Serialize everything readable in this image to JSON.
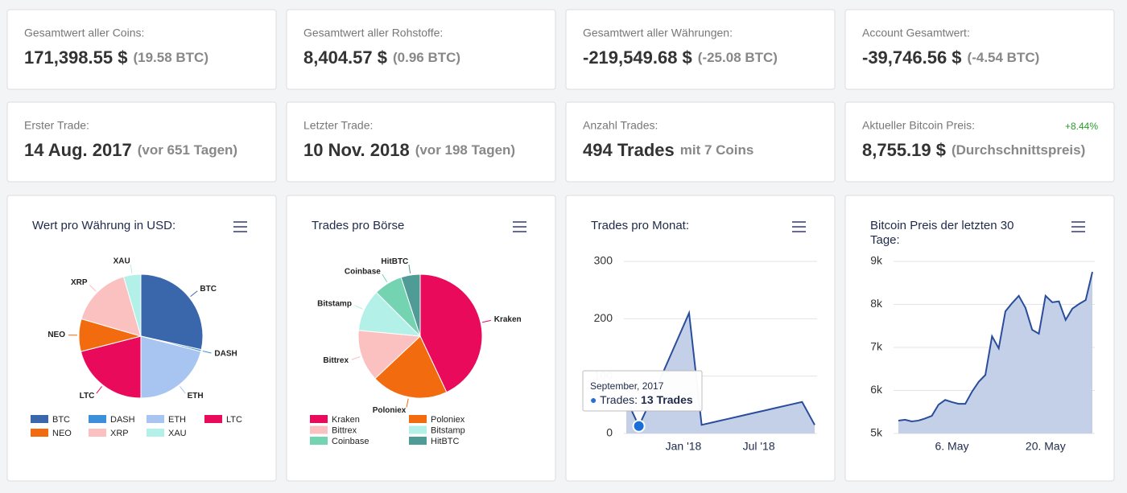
{
  "cards": [
    {
      "label": "Gesamtwert aller Coins:",
      "value": "171,398.55 $",
      "detail": "(19.58 BTC)"
    },
    {
      "label": "Gesamtwert aller Rohstoffe:",
      "value": "8,404.57 $",
      "detail": "(0.96 BTC)"
    },
    {
      "label": "Gesamtwert aller Währungen:",
      "value": "-219,549.68 $",
      "detail": "(-25.08 BTC)"
    },
    {
      "label": "Account Gesamtwert:",
      "value": "-39,746.56 $",
      "detail": "(-4.54 BTC)"
    },
    {
      "label": "Erster Trade:",
      "value": "14 Aug. 2017",
      "detail": "(vor 651 Tagen)"
    },
    {
      "label": "Letzter Trade:",
      "value": "10 Nov. 2018",
      "detail": "(vor 198 Tagen)"
    },
    {
      "label": "Anzahl Trades:",
      "value": "494 Trades",
      "detail": "mit 7 Coins"
    },
    {
      "label": "Aktueller Bitcoin Preis:",
      "value": "8,755.19 $",
      "detail": "(Durchschnittspreis)",
      "change": "+8.44%"
    }
  ],
  "chart_data": [
    {
      "type": "pie",
      "title": "Wert pro Währung in USD:",
      "categories": [
        "BTC",
        "DASH",
        "ETH",
        "LTC",
        "NEO",
        "XRP",
        "XAU"
      ],
      "values": [
        28.5,
        0.5,
        21,
        21,
        8.5,
        16,
        4.5
      ],
      "colors": [
        "#3a66ac",
        "#3d8fd9",
        "#a8c4f0",
        "#ea0a5c",
        "#f26b0f",
        "#fbc0c0",
        "#b3f0e8"
      ],
      "legend_columns": 4
    },
    {
      "type": "pie",
      "title": "Trades pro Börse",
      "categories": [
        "Kraken",
        "Poloniex",
        "Bittrex",
        "Bitstamp",
        "Coinbase",
        "HitBTC"
      ],
      "values": [
        43,
        20,
        13.5,
        11,
        7.5,
        5
      ],
      "colors": [
        "#ea0a5c",
        "#f26b0f",
        "#fbc0c0",
        "#b3f0e8",
        "#74d3b0",
        "#4f9b96"
      ],
      "legend_columns": 2
    },
    {
      "type": "area",
      "title": "Trades pro Monat:",
      "x": [
        "2017-08",
        "2017-09",
        "2017-10",
        "2017-11",
        "2017-12",
        "2018-01",
        "2018-02",
        "2018-03",
        "2018-04",
        "2018-05",
        "2018-06",
        "2018-07",
        "2018-08",
        "2018-09",
        "2018-10",
        "2018-11"
      ],
      "series": [
        {
          "name": "Trades",
          "color": "#2a4d9b",
          "values": [
            60,
            13,
            60,
            110,
            160,
            210,
            15,
            20,
            25,
            30,
            35,
            40,
            45,
            50,
            55,
            15
          ]
        }
      ],
      "ylim": [
        0,
        300
      ],
      "yticks": [
        0,
        100,
        200,
        300
      ],
      "xticks": [
        {
          "value": "2018-01",
          "label": "Jan '18"
        },
        {
          "value": "2018-07",
          "label": "Jul '18"
        }
      ],
      "grid": true,
      "tooltip": {
        "index": 1,
        "title": "September, 2017",
        "series_label": "Trades:",
        "value_label": "13 Trades"
      }
    },
    {
      "type": "area",
      "title": "Bitcoin Preis der letzten 30 Tage:",
      "categories": [
        "28. Apr",
        "29. Apr",
        "30. Apr",
        "1. May",
        "2. May",
        "3. May",
        "4. May",
        "5. May",
        "6. May",
        "7. May",
        "8. May",
        "9. May",
        "10. May",
        "11. May",
        "12. May",
        "13. May",
        "14. May",
        "15. May",
        "16. May",
        "17. May",
        "18. May",
        "19. May",
        "20. May",
        "21. May",
        "22. May",
        "23. May",
        "24. May",
        "25. May",
        "26. May",
        "27. May"
      ],
      "series": [
        {
          "name": "Bitcoin Preis",
          "color": "#2a4d9b",
          "values": [
            5300,
            5320,
            5280,
            5300,
            5350,
            5410,
            5670,
            5780,
            5730,
            5690,
            5690,
            5970,
            6200,
            6360,
            7260,
            6980,
            7840,
            8030,
            8200,
            7920,
            7410,
            7320,
            8200,
            8050,
            8070,
            7640,
            7900,
            8010,
            8100,
            8755
          ]
        }
      ],
      "ylim": [
        5000,
        9000
      ],
      "yticks": [
        {
          "value": 5000,
          "label": "5k"
        },
        {
          "value": 6000,
          "label": "6k"
        },
        {
          "value": 7000,
          "label": "7k"
        },
        {
          "value": 8000,
          "label": "8k"
        },
        {
          "value": 9000,
          "label": "9k"
        }
      ],
      "xtick_indices": [
        8,
        22
      ],
      "grid": true
    }
  ]
}
